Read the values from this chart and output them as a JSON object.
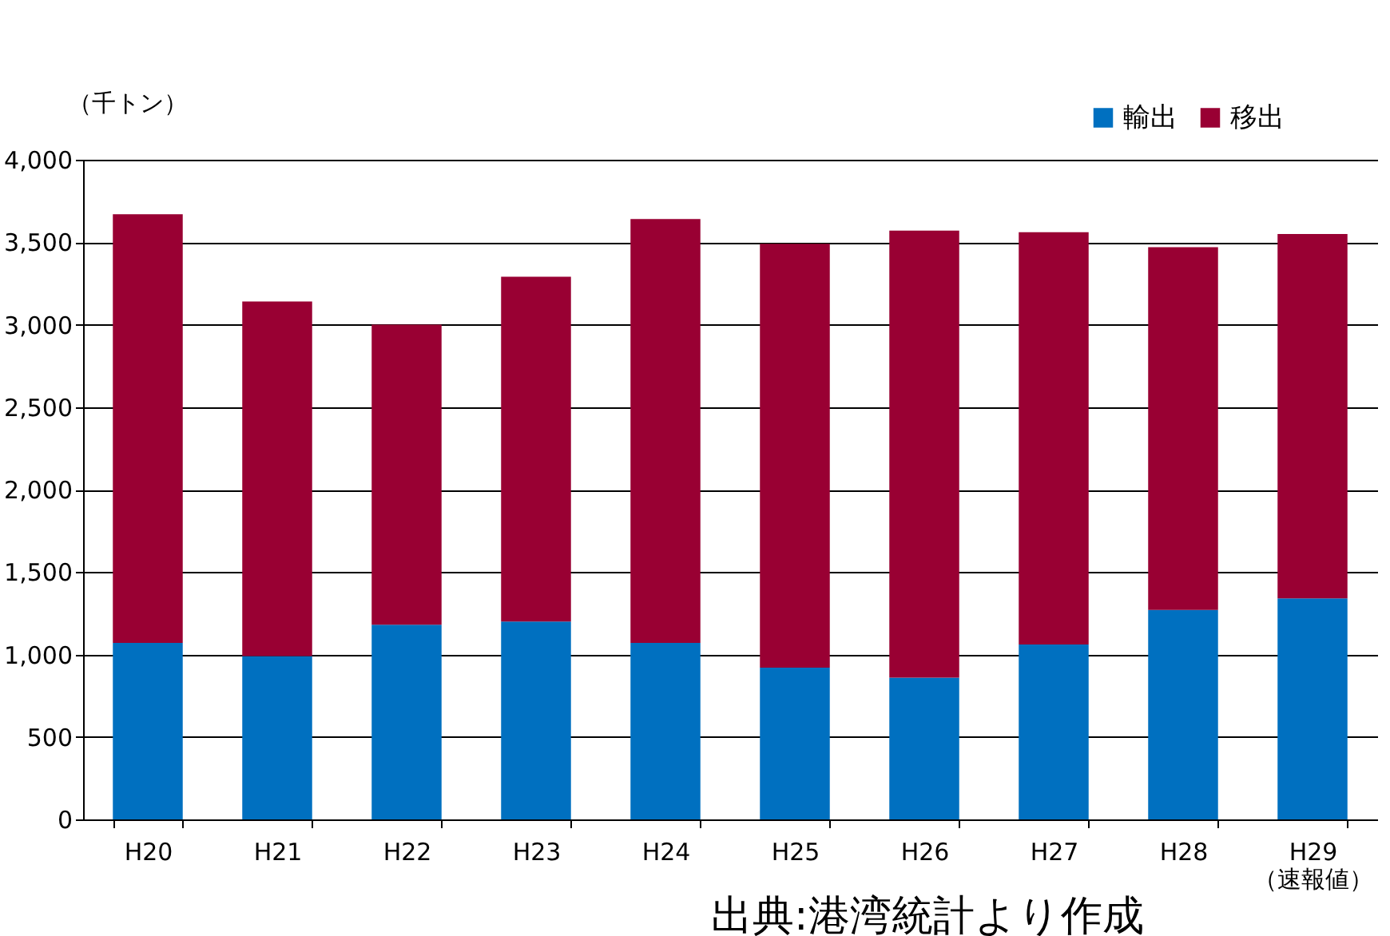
{
  "chart_data": {
    "type": "bar",
    "stacked": true,
    "ylabel": "（千トン）",
    "categories": [
      "H20",
      "H21",
      "H22",
      "H23",
      "H24",
      "H25",
      "H26",
      "H27",
      "H28",
      "H29\n（速報値）"
    ],
    "series": [
      {
        "name": "輸出",
        "color": "#0070c0",
        "values": [
          1070,
          990,
          1180,
          1200,
          1070,
          920,
          860,
          1060,
          1270,
          1340
        ]
      },
      {
        "name": "移出",
        "color": "#990033",
        "values": [
          2600,
          2150,
          1820,
          2090,
          2570,
          2570,
          2710,
          2500,
          2200,
          2210
        ]
      }
    ],
    "ylim": [
      0,
      4000
    ],
    "yticks": [
      0,
      500,
      {
        "value": 1000,
        "label": "1,000"
      },
      {
        "value": 1500,
        "label": "1,500"
      },
      {
        "value": 2000,
        "label": "2,000"
      },
      {
        "value": 2500,
        "label": "2,500"
      },
      {
        "value": 3000,
        "label": "3,000"
      },
      {
        "value": 3500,
        "label": "3,500"
      },
      {
        "value": 4000,
        "label": "4,000"
      }
    ],
    "grid": "y",
    "legend": "top right",
    "annotations": [
      "出典:港湾統計より作成"
    ]
  }
}
